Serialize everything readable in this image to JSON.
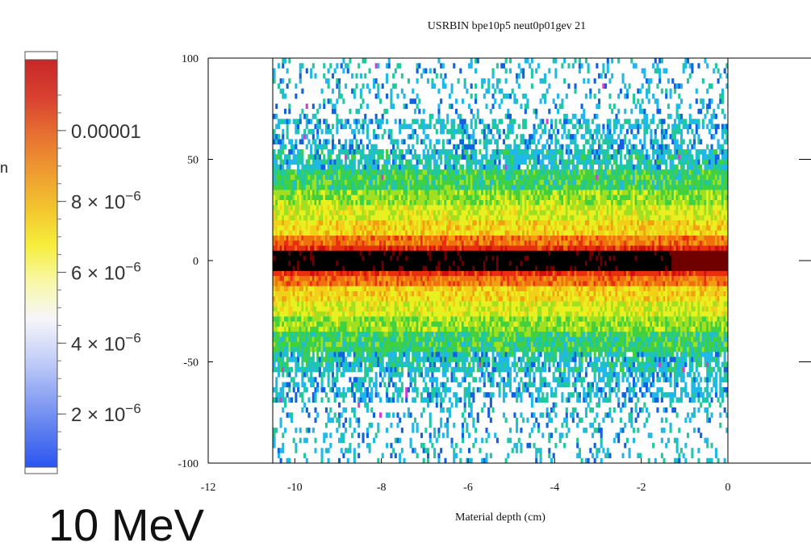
{
  "caption": "10 MeV",
  "colorbar": {
    "label_fragment": "n",
    "ticks": [
      {
        "value": 1e-05,
        "label": "0.00001",
        "sup": ""
      },
      {
        "value": 8e-06,
        "label": "8 × 10",
        "sup": "−6"
      },
      {
        "value": 6e-06,
        "label": "6 × 10",
        "sup": "−6"
      },
      {
        "value": 4e-06,
        "label": "4 × 10",
        "sup": "−6"
      },
      {
        "value": 2e-06,
        "label": "2 × 10",
        "sup": "−6"
      }
    ],
    "range": [
      5e-07,
      1.2e-05
    ],
    "colors": [
      "#2b55f2",
      "#5d7ef0",
      "#93a8f4",
      "#c8d2f8",
      "#f6f6fb",
      "#f8f8a8",
      "#f6ee3c",
      "#f2c42e",
      "#ee9a30",
      "#e67030",
      "#d84030",
      "#c82828"
    ]
  },
  "chart_data": {
    "type": "heatmap",
    "title": "USRBIN bpe10p5 neut0p01gev 21",
    "xlabel": "Material depth (cm)",
    "ylabel": "",
    "xlim": [
      -12,
      0
    ],
    "ylim": [
      -100,
      100
    ],
    "x_ticks": [
      "-12",
      "-10",
      "-8",
      "-6",
      "-4",
      "-2",
      "0"
    ],
    "y_ticks": [
      "100",
      "50",
      "0",
      "-50",
      "-100"
    ],
    "data_region": {
      "x": [
        -10.5,
        0
      ],
      "y": [
        -100,
        100
      ]
    },
    "profile_note": "Intensity peaks along y = 0 across full depth, decreasing toward |y| = 100",
    "band_profile": [
      {
        "y_abs": 0,
        "level": "max"
      },
      {
        "y_abs": 5,
        "level": "red"
      },
      {
        "y_abs": 12,
        "level": "orange"
      },
      {
        "y_abs": 25,
        "level": "yellow"
      },
      {
        "y_abs": 40,
        "level": "green"
      },
      {
        "y_abs": 60,
        "level": "cyan"
      },
      {
        "y_abs": 100,
        "level": "sparse"
      }
    ],
    "palette": [
      "#ffffff",
      "#1060e0",
      "#20b8e8",
      "#20c8a0",
      "#40d040",
      "#a0e020",
      "#e8f020",
      "#f0d018",
      "#f0a010",
      "#f07010",
      "#e83010",
      "#d01010",
      "#700000",
      "#000000"
    ]
  }
}
